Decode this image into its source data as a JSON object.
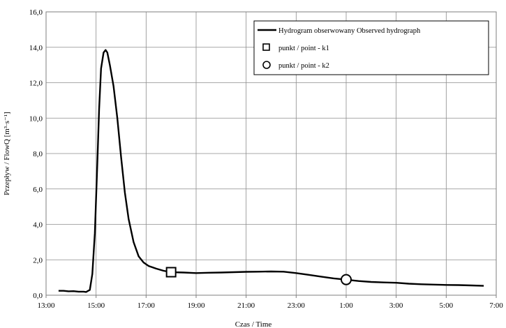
{
  "chart_data": {
    "type": "line",
    "xlabel": "Czas / Time",
    "ylabel": "Przepływ / FlowQ  [m³·s⁻¹]",
    "x_ticks": [
      "13:00",
      "15:00",
      "17:00",
      "19:00",
      "21:00",
      "23:00",
      "1:00",
      "3:00",
      "5:00",
      "7:00"
    ],
    "y_ticks": [
      "0,0",
      "2,0",
      "4,0",
      "6,0",
      "8,0",
      "10,0",
      "12,0",
      "14,0",
      "16,0"
    ],
    "xlim_hours": [
      13,
      31
    ],
    "ylim": [
      0,
      16
    ],
    "grid": true,
    "legend_position": "top-right",
    "series": [
      {
        "name": "Hydrogram obserwowany Observed hydrograph",
        "color": "#000000",
        "points": [
          [
            13.5,
            0.25
          ],
          [
            13.7,
            0.25
          ],
          [
            13.9,
            0.22
          ],
          [
            14.1,
            0.23
          ],
          [
            14.3,
            0.2
          ],
          [
            14.5,
            0.2
          ],
          [
            14.6,
            0.18
          ],
          [
            14.75,
            0.3
          ],
          [
            14.85,
            1.2
          ],
          [
            14.95,
            3.5
          ],
          [
            15.05,
            7.5
          ],
          [
            15.12,
            10.5
          ],
          [
            15.2,
            12.8
          ],
          [
            15.3,
            13.7
          ],
          [
            15.38,
            13.85
          ],
          [
            15.45,
            13.7
          ],
          [
            15.55,
            13.0
          ],
          [
            15.7,
            11.8
          ],
          [
            15.85,
            10.0
          ],
          [
            16.0,
            7.8
          ],
          [
            16.15,
            5.8
          ],
          [
            16.3,
            4.3
          ],
          [
            16.5,
            3.0
          ],
          [
            16.7,
            2.2
          ],
          [
            16.9,
            1.85
          ],
          [
            17.1,
            1.65
          ],
          [
            17.4,
            1.5
          ],
          [
            17.7,
            1.38
          ],
          [
            18.0,
            1.3
          ],
          [
            18.5,
            1.28
          ],
          [
            19.0,
            1.25
          ],
          [
            19.5,
            1.27
          ],
          [
            20.0,
            1.28
          ],
          [
            20.5,
            1.3
          ],
          [
            21.0,
            1.32
          ],
          [
            21.5,
            1.33
          ],
          [
            22.0,
            1.34
          ],
          [
            22.5,
            1.33
          ],
          [
            23.0,
            1.25
          ],
          [
            23.5,
            1.15
          ],
          [
            24.0,
            1.05
          ],
          [
            24.5,
            0.95
          ],
          [
            25.0,
            0.88
          ],
          [
            25.5,
            0.8
          ],
          [
            26.0,
            0.75
          ],
          [
            26.5,
            0.72
          ],
          [
            27.0,
            0.7
          ],
          [
            27.5,
            0.65
          ],
          [
            28.0,
            0.62
          ],
          [
            28.5,
            0.6
          ],
          [
            29.0,
            0.58
          ],
          [
            29.5,
            0.57
          ],
          [
            30.0,
            0.55
          ],
          [
            30.5,
            0.53
          ]
        ]
      }
    ],
    "markers": [
      {
        "name": "punkt / point - k1",
        "shape": "square",
        "x": 18.0,
        "y": 1.3
      },
      {
        "name": "punkt / point - k2",
        "shape": "circle",
        "x": 25.0,
        "y": 0.88
      }
    ]
  }
}
